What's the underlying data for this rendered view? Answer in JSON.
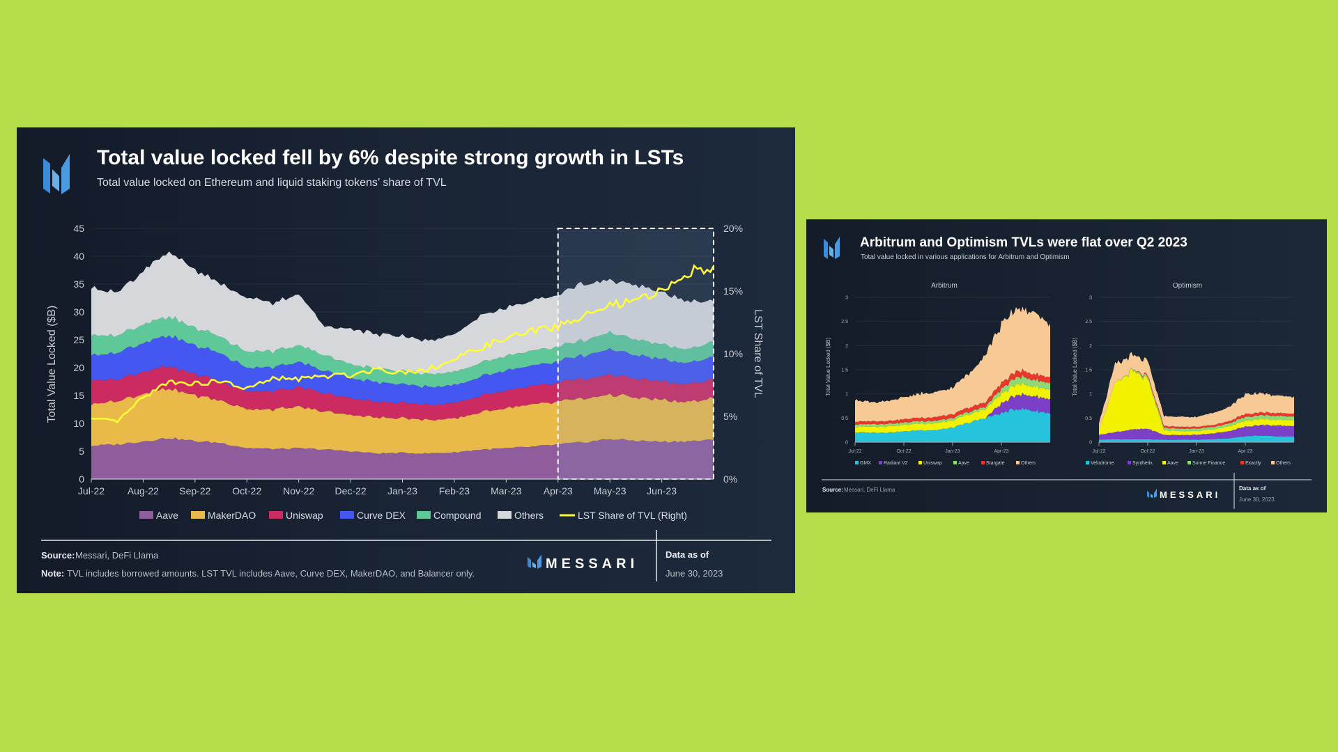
{
  "background_color": "#b5de4a",
  "colors": {
    "aave": "#8f5d9c",
    "makerdao": "#e9b949",
    "uniswap": "#cc2b62",
    "curve": "#4457f0",
    "compound": "#5ec899",
    "others": "#d6d7da",
    "lst": "#ffff33",
    "gmx": "#26c3dc",
    "radiant": "#7d3fc8",
    "arb_uniswap": "#f2f200",
    "arb_aave": "#8fd873",
    "stargate": "#e8372c",
    "arb_others": "#f6c995",
    "velodrome": "#26c3dc",
    "synthetix": "#7d3fc8",
    "op_aave": "#f2f200",
    "sonne": "#8fd873",
    "exactly": "#e8372c",
    "op_others": "#f6c995"
  },
  "left_panel": {
    "logo_icon": "messari-m-icon",
    "title": "Total value locked fell by 6% despite strong growth in LSTs",
    "subtitle": "Total value locked on Ethereum and liquid staking tokens’ share of TVL",
    "footer": {
      "source_label": "Source:",
      "source_text": "Messari, DeFi Llama",
      "note_label": "Note:",
      "note_text": "TVL includes borrowed amounts. LST TVL includes Aave, Curve DEX, MakerDAO, and Balancer only.",
      "brand": "MESSARI",
      "data_as_of_label": "Data as of",
      "data_as_of_date": "June 30, 2023"
    }
  },
  "right_panel": {
    "logo_icon": "messari-m-icon",
    "title": "Arbitrum and Optimism TVLs were flat over Q2 2023",
    "subtitle": "Total value locked in various applications for Arbitrum and Optimism",
    "footer": {
      "source_label": "Source:",
      "source_text": "Messari, DeFi Llama",
      "brand": "MESSARI",
      "data_as_of_label": "Data as of",
      "data_as_of_date": "June 30, 2023"
    }
  },
  "chart_data": [
    {
      "type": "area",
      "stacked": true,
      "title": "Total value locked fell by 6% despite strong growth in LSTs",
      "subtitle": "Total value locked on Ethereum and liquid staking tokens’ share of TVL",
      "ylabel": "Total Value Locked ($B)",
      "ylabel_right": "LST Share of TVL",
      "ylim": [
        0,
        45
      ],
      "ylim_right": [
        0,
        20
      ],
      "yticks": [
        "0",
        "5",
        "10",
        "15",
        "20",
        "25",
        "30",
        "35",
        "40",
        "45"
      ],
      "yticks_right": [
        "0%",
        "5%",
        "10%",
        "15%",
        "20%"
      ],
      "xticks": [
        "Jul-22",
        "Aug-22",
        "Sep-22",
        "Oct-22",
        "Nov-22",
        "Dec-22",
        "Jan-23",
        "Feb-23",
        "Mar-23",
        "Apr-23",
        "May-23",
        "Jun-23"
      ],
      "highlight_range": [
        "Apr-23",
        "Jun-30-23"
      ],
      "x": [
        0,
        0.5,
        1,
        1.5,
        2,
        2.5,
        3,
        3.5,
        4,
        4.5,
        5,
        5.5,
        6,
        6.5,
        7,
        7.5,
        8,
        8.5,
        9,
        9.5,
        10,
        10.5,
        11,
        11.5,
        12
      ],
      "series": [
        {
          "name": "Aave",
          "key": "aave",
          "values": [
            6.0,
            6.2,
            6.8,
            7.4,
            6.8,
            6.5,
            5.6,
            5.4,
            5.5,
            5.3,
            5.0,
            4.6,
            4.7,
            4.6,
            4.8,
            5.3,
            5.5,
            5.8,
            6.2,
            6.6,
            7.2,
            6.9,
            6.7,
            6.8,
            7.0
          ]
        },
        {
          "name": "MakerDAO",
          "key": "makerdao",
          "values": [
            7.5,
            7.8,
            8.6,
            8.8,
            8.2,
            7.6,
            7.0,
            7.1,
            7.4,
            6.8,
            6.6,
            6.4,
            6.3,
            6.0,
            6.0,
            6.7,
            7.2,
            7.5,
            7.7,
            7.8,
            8.0,
            7.7,
            7.5,
            7.0,
            7.5
          ]
        },
        {
          "name": "Uniswap",
          "key": "uniswap",
          "values": [
            4.4,
            3.8,
            4.0,
            4.0,
            3.8,
            3.5,
            3.2,
            3.3,
            3.5,
            3.3,
            3.0,
            2.8,
            2.8,
            2.7,
            2.8,
            3.0,
            3.2,
            3.3,
            3.4,
            3.5,
            3.6,
            3.4,
            3.3,
            3.2,
            3.4
          ]
        },
        {
          "name": "Curve DEX",
          "key": "curve",
          "values": [
            4.5,
            4.8,
            5.1,
            5.5,
            5.1,
            5.0,
            4.2,
            4.3,
            4.5,
            4.0,
            3.7,
            3.5,
            3.3,
            3.2,
            3.2,
            3.4,
            3.6,
            3.7,
            3.8,
            4.2,
            4.6,
            4.2,
            4.0,
            3.8,
            4.0
          ]
        },
        {
          "name": "Compound",
          "key": "compound",
          "values": [
            3.6,
            3.1,
            3.3,
            3.4,
            3.2,
            3.0,
            2.9,
            2.9,
            3.0,
            2.8,
            2.5,
            2.4,
            2.4,
            2.3,
            2.4,
            2.5,
            2.6,
            2.7,
            2.6,
            2.7,
            3.0,
            2.8,
            2.6,
            2.5,
            2.7
          ]
        },
        {
          "name": "Others",
          "key": "others",
          "values": [
            8.5,
            7.8,
            9.5,
            11.5,
            10.4,
            9.5,
            9.6,
            8.6,
            9.1,
            5.2,
            6.4,
            6.2,
            6.2,
            6.0,
            6.6,
            8.5,
            8.5,
            9.0,
            9.3,
            10.2,
            9.4,
            9.6,
            9.4,
            8.6,
            7.3
          ]
        }
      ],
      "line_series": {
        "name": "LST Share of TVL (Right)",
        "key": "lst",
        "axis": "right",
        "values": [
          4.8,
          4.6,
          6.5,
          7.8,
          7.6,
          7.8,
          7.2,
          8.0,
          8.0,
          8.2,
          8.3,
          8.8,
          8.5,
          8.8,
          9.5,
          10.5,
          11.2,
          11.8,
          12.2,
          13.0,
          13.8,
          14.2,
          15.0,
          16.5,
          17.0
        ]
      },
      "legend": [
        "Aave",
        "MakerDAO",
        "Uniswap",
        "Curve DEX",
        "Compound",
        "Others",
        "LST Share of TVL (Right)"
      ],
      "legend_position": "bottom"
    },
    {
      "type": "area",
      "stacked": true,
      "title": "Arbitrum",
      "ylabel": "Total Value Locked ($B)",
      "ylim": [
        0,
        3
      ],
      "yticks": [
        "0",
        "0.5",
        "1",
        "1.5",
        "2",
        "2.5",
        "3"
      ],
      "xticks": [
        "Jul-22",
        "Oct-22",
        "Jan-23",
        "Apr-23"
      ],
      "x": [
        0,
        1,
        2,
        3,
        4,
        5,
        6,
        7,
        8,
        9,
        10,
        11,
        12
      ],
      "series": [
        {
          "name": "GMX",
          "key": "gmx",
          "values": [
            0.2,
            0.2,
            0.2,
            0.22,
            0.25,
            0.25,
            0.3,
            0.4,
            0.5,
            0.6,
            0.7,
            0.65,
            0.6
          ]
        },
        {
          "name": "Radiant V2",
          "key": "radiant",
          "values": [
            0.0,
            0.0,
            0.0,
            0.0,
            0.0,
            0.0,
            0.0,
            0.0,
            0.0,
            0.2,
            0.3,
            0.3,
            0.3
          ]
        },
        {
          "name": "Uniswap",
          "key": "arb_uniswap",
          "values": [
            0.12,
            0.12,
            0.13,
            0.13,
            0.14,
            0.14,
            0.15,
            0.17,
            0.18,
            0.2,
            0.22,
            0.2,
            0.2
          ]
        },
        {
          "name": "Aave",
          "key": "arb_aave",
          "values": [
            0.05,
            0.05,
            0.05,
            0.05,
            0.05,
            0.05,
            0.05,
            0.05,
            0.05,
            0.1,
            0.15,
            0.14,
            0.14
          ]
        },
        {
          "name": "Stargate",
          "key": "stargate",
          "values": [
            0.06,
            0.06,
            0.06,
            0.07,
            0.07,
            0.08,
            0.08,
            0.09,
            0.1,
            0.12,
            0.13,
            0.12,
            0.12
          ]
        },
        {
          "name": "Others",
          "key": "arb_others",
          "values": [
            0.45,
            0.4,
            0.4,
            0.45,
            0.5,
            0.5,
            0.55,
            0.7,
            1.0,
            1.2,
            1.3,
            1.25,
            1.1
          ]
        }
      ],
      "legend": [
        "GMX",
        "Radiant V2",
        "Uniswap",
        "Aave",
        "Stargate",
        "Others"
      ]
    },
    {
      "type": "area",
      "stacked": true,
      "title": "Optimism",
      "ylabel": "Total Value Locked ($B)",
      "ylim": [
        0,
        3
      ],
      "yticks": [
        "0",
        "0.5",
        "1",
        "1.5",
        "2",
        "2.5",
        "3"
      ],
      "xticks": [
        "Jul-22",
        "Oct-22",
        "Jan-23",
        "Apr-23"
      ],
      "x": [
        0,
        1,
        2,
        3,
        4,
        5,
        6,
        7,
        8,
        9,
        10,
        11,
        12
      ],
      "series": [
        {
          "name": "Velodrome",
          "key": "velodrome",
          "values": [
            0.05,
            0.06,
            0.06,
            0.06,
            0.05,
            0.05,
            0.05,
            0.06,
            0.08,
            0.12,
            0.14,
            0.12,
            0.12
          ]
        },
        {
          "name": "Synthetix",
          "key": "synthetix",
          "values": [
            0.1,
            0.15,
            0.2,
            0.22,
            0.1,
            0.1,
            0.1,
            0.12,
            0.15,
            0.2,
            0.22,
            0.22,
            0.22
          ]
        },
        {
          "name": "Aave",
          "key": "op_aave",
          "values": [
            0.1,
            1.0,
            1.2,
            1.0,
            0.1,
            0.08,
            0.08,
            0.08,
            0.1,
            0.12,
            0.12,
            0.12,
            0.12
          ]
        },
        {
          "name": "Sonne Finance",
          "key": "sonne",
          "values": [
            0.0,
            0.0,
            0.02,
            0.05,
            0.05,
            0.05,
            0.05,
            0.05,
            0.06,
            0.08,
            0.08,
            0.08,
            0.08
          ]
        },
        {
          "name": "Exactly",
          "key": "exactly",
          "values": [
            0.0,
            0.0,
            0.0,
            0.03,
            0.04,
            0.04,
            0.04,
            0.04,
            0.05,
            0.06,
            0.06,
            0.06,
            0.06
          ]
        },
        {
          "name": "Others",
          "key": "op_others",
          "values": [
            0.15,
            0.4,
            0.3,
            0.3,
            0.2,
            0.2,
            0.2,
            0.25,
            0.3,
            0.4,
            0.4,
            0.35,
            0.35
          ]
        }
      ],
      "legend": [
        "Velodrome",
        "Synthetix",
        "Aave",
        "Sonne Finance",
        "Exactly",
        "Others"
      ]
    }
  ]
}
